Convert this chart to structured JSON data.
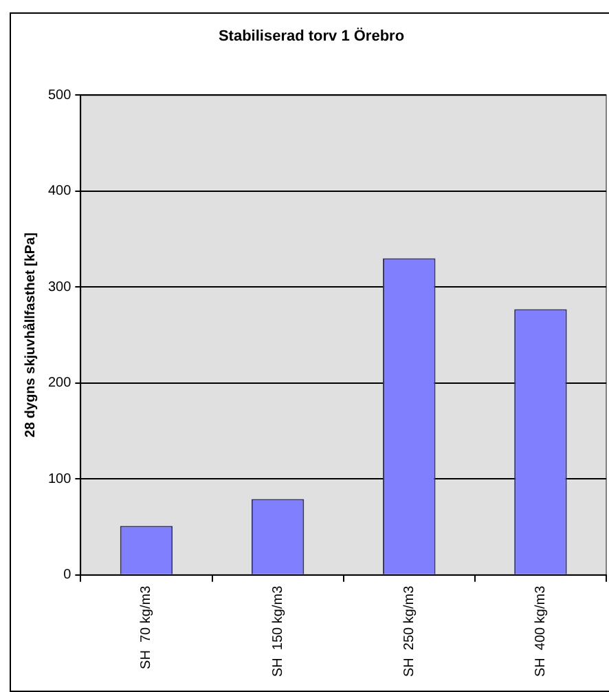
{
  "chart_data": {
    "type": "bar",
    "title": "Stabiliserad torv 1 Örebro",
    "ylabel": "28 dygns skjuvhållfasthet [kPa]",
    "categories": [
      "SH  70 kg/m3",
      "SH  150 kg/m3",
      "SH  250 kg/m3",
      "SH  400 kg/m3"
    ],
    "values": [
      51,
      79,
      330,
      277
    ],
    "color": "#8080ff",
    "ylim": [
      0,
      500
    ],
    "yticks": [
      0,
      100,
      200,
      300,
      400,
      500
    ],
    "grid": "y",
    "legend": false
  }
}
